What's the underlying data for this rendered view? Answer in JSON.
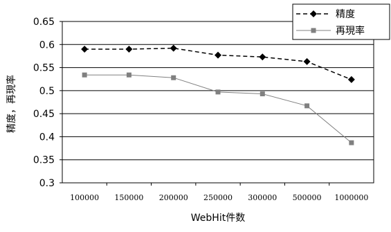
{
  "chart_data": {
    "type": "line",
    "categories": [
      "100000",
      "150000",
      "200000",
      "250000",
      "300000",
      "500000",
      "1000000"
    ],
    "series": [
      {
        "name": "精度",
        "values": [
          0.59,
          0.59,
          0.592,
          0.577,
          0.573,
          0.563,
          0.524
        ],
        "color": "#000000",
        "line_style": "dashed",
        "marker": "diamond"
      },
      {
        "name": "再現率",
        "values": [
          0.534,
          0.534,
          0.528,
          0.497,
          0.493,
          0.467,
          0.387
        ],
        "color": "#808080",
        "line_style": "solid",
        "marker": "square"
      }
    ],
    "title": "",
    "xlabel": "WebHit件数",
    "ylabel": "精度，再現率",
    "ylim": [
      0.3,
      0.65
    ],
    "yticks": [
      "0.3",
      "0.35",
      "0.4",
      "0.45",
      "0.5",
      "0.55",
      "0.6",
      "0.65"
    ],
    "grid": "horizontal",
    "legend": "top-right"
  }
}
